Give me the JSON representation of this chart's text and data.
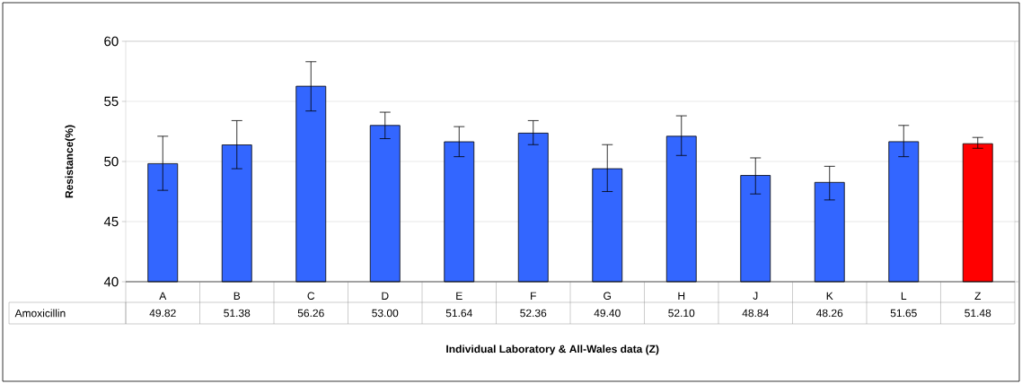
{
  "chart_data": {
    "type": "bar",
    "xlabel": "Individual Laboratory & All-Wales data (Z)",
    "ylabel": "Resistance(%)",
    "categories": [
      "A",
      "B",
      "C",
      "D",
      "E",
      "F",
      "G",
      "H",
      "J",
      "K",
      "L",
      "Z"
    ],
    "series": [
      {
        "name": "Amoxicillin",
        "colors": [
          "#3366ff",
          "#3366ff",
          "#3366ff",
          "#3366ff",
          "#3366ff",
          "#3366ff",
          "#3366ff",
          "#3366ff",
          "#3366ff",
          "#3366ff",
          "#3366ff",
          "#ff0000"
        ],
        "values": [
          49.82,
          51.38,
          56.26,
          53.0,
          51.64,
          52.36,
          49.4,
          52.1,
          48.84,
          48.26,
          51.65,
          51.48
        ],
        "errors": [
          [
            47.6,
            52.1
          ],
          [
            49.4,
            53.4
          ],
          [
            54.2,
            58.3
          ],
          [
            51.9,
            54.1
          ],
          [
            50.4,
            52.9
          ],
          [
            51.4,
            53.4
          ],
          [
            47.5,
            51.4
          ],
          [
            50.5,
            53.8
          ],
          [
            47.3,
            50.3
          ],
          [
            46.8,
            49.6
          ],
          [
            50.4,
            53.0
          ],
          [
            51.1,
            52.0
          ]
        ],
        "value_labels": [
          "49.82",
          "51.38",
          "56.26",
          "53.00",
          "51.64",
          "52.36",
          "49.40",
          "52.10",
          "48.84",
          "48.26",
          "51.65",
          "51.48"
        ]
      }
    ],
    "ylim": [
      40,
      60
    ],
    "yticks": [
      40,
      45,
      50,
      55,
      60
    ],
    "grid": "y"
  }
}
